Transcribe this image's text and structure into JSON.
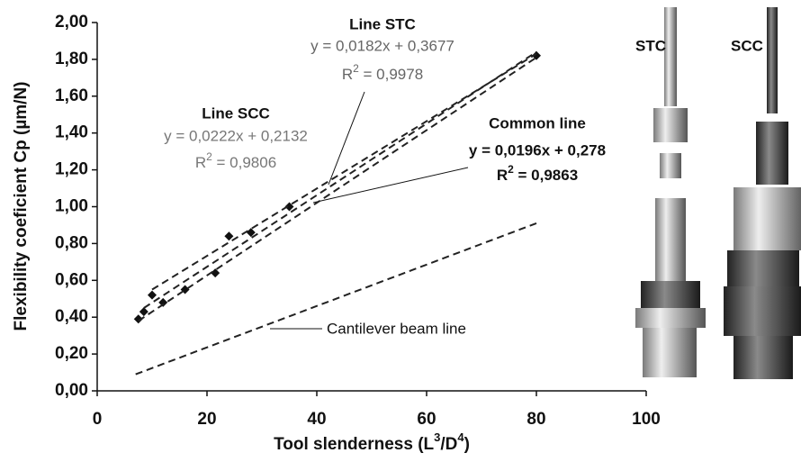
{
  "chart_data": {
    "type": "scatter",
    "xlabel": [
      "Tool slenderness (L",
      "3",
      "/D",
      "4",
      ")"
    ],
    "ylabel": "Flexibility coeficient Cp (µm/N)",
    "xlim": [
      0,
      100
    ],
    "xticks": [
      0,
      20,
      40,
      60,
      80,
      100
    ],
    "ylim": [
      0,
      2
    ],
    "yticks": [
      {
        "value": 0,
        "label": "0,00"
      },
      {
        "value": 0.2,
        "label": "0,20"
      },
      {
        "value": 0.4,
        "label": "0,40"
      },
      {
        "value": 0.6,
        "label": "0,60"
      },
      {
        "value": 0.8,
        "label": "0,80"
      },
      {
        "value": 1.0,
        "label": "1,00"
      },
      {
        "value": 1.2,
        "label": "1,20"
      },
      {
        "value": 1.4,
        "label": "1,40"
      },
      {
        "value": 1.6,
        "label": "1,60"
      },
      {
        "value": 1.8,
        "label": "1,80"
      },
      {
        "value": 2.0,
        "label": "2,00"
      }
    ],
    "series": [
      {
        "mode": "markers",
        "color": "#111111",
        "x": [
          7.5,
          8.5,
          10,
          12,
          16,
          21.5,
          24,
          28,
          35,
          80
        ],
        "values": [
          0.39,
          0.43,
          0.52,
          0.48,
          0.55,
          0.64,
          0.84,
          0.86,
          1.0,
          1.82
        ]
      },
      {
        "mode": "dashed",
        "color": "#222222",
        "x": [
          10,
          80
        ],
        "values": [
          0.55,
          1.83
        ]
      },
      {
        "mode": "dashed",
        "color": "#222222",
        "x": [
          7.5,
          80
        ],
        "values": [
          0.38,
          1.81
        ]
      },
      {
        "mode": "dashed",
        "color": "#222222",
        "x": [
          8.5,
          80
        ],
        "values": [
          0.45,
          1.84
        ]
      },
      {
        "mode": "dashed",
        "color": "#222222",
        "x": [
          7,
          80
        ],
        "values": [
          0.09,
          0.91
        ]
      }
    ],
    "annotations": [
      {
        "title": "Line STC",
        "equation": "y = 0,0182x + 0,3677",
        "r2": [
          "R",
          "2",
          " = 0,9978"
        ],
        "color": "#666666",
        "bold": false
      },
      {
        "title": "Line SCC",
        "equation": "y = 0,0222x + 0,2132",
        "r2": [
          "R",
          "2",
          " = 0,9806"
        ],
        "color": "#777777",
        "bold": false
      },
      {
        "title": "Common line",
        "equation": "y = 0,0196x + 0,278",
        "r2": [
          "R",
          "2",
          " = 0,9863"
        ],
        "color": "#111111",
        "bold": true
      }
    ],
    "cantilever_label": "Cantilever beam line",
    "image_labels": [
      "STC",
      "SCC"
    ]
  }
}
